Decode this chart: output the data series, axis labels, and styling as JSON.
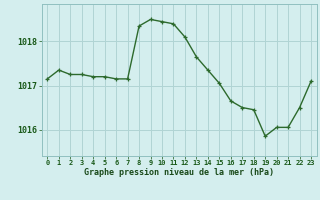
{
  "x": [
    0,
    1,
    2,
    3,
    4,
    5,
    6,
    7,
    8,
    9,
    10,
    11,
    12,
    13,
    14,
    15,
    16,
    17,
    18,
    19,
    20,
    21,
    22,
    23
  ],
  "y": [
    1017.15,
    1017.35,
    1017.25,
    1017.25,
    1017.2,
    1017.2,
    1017.15,
    1017.15,
    1018.35,
    1018.5,
    1018.45,
    1018.4,
    1018.1,
    1017.65,
    1017.35,
    1017.05,
    1016.65,
    1016.5,
    1016.45,
    1015.85,
    1016.05,
    1016.05,
    1016.5,
    1017.1
  ],
  "line_color": "#2d6a2d",
  "marker_color": "#2d6a2d",
  "bg_color": "#d4eeee",
  "grid_color": "#b0d4d4",
  "xlabel": "Graphe pression niveau de la mer (hPa)",
  "xlabel_color": "#1a4a1a",
  "tick_label_color": "#1a5a1a",
  "ylim": [
    1015.4,
    1018.85
  ],
  "xlim": [
    -0.5,
    23.5
  ]
}
